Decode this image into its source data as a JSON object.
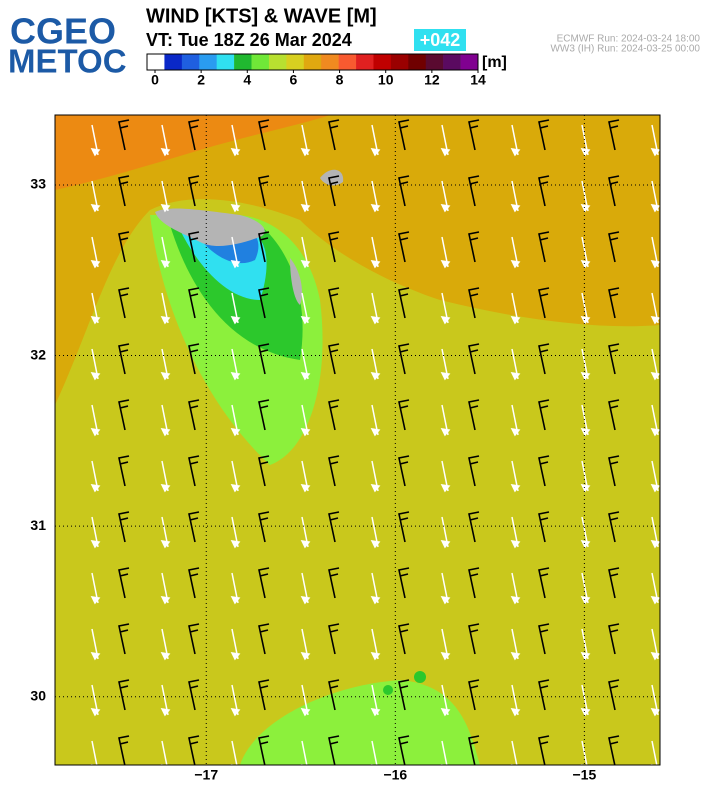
{
  "logo": {
    "line1": "CGEO",
    "line2": "METOC"
  },
  "header": {
    "title": "WIND [KTS] & WAVE [M]",
    "valid_time": "VT:  Tue 18Z 26 Mar 2024",
    "lead": "+042",
    "run1": "ECMWF    Run: 2024-03-24 18:00",
    "run2": "WW3 (IH) Run: 2024-03-25 00:00"
  },
  "colorbar": {
    "unit": "[m]",
    "lim": [
      0,
      14
    ],
    "ticks": [
      0,
      2,
      4,
      6,
      8,
      10,
      12,
      14
    ],
    "colors": [
      "#ffffff",
      "#0a28c8",
      "#1f5fe0",
      "#2a9cf0",
      "#30e0f0",
      "#20b830",
      "#70e838",
      "#b8e030",
      "#d8d020",
      "#e0a810",
      "#f08a20",
      "#f85a30",
      "#e02020",
      "#c00000",
      "#9a0000",
      "#700000",
      "#5a0a30",
      "#5a0a60",
      "#800090"
    ]
  },
  "map": {
    "xlim": [
      -17.8,
      -14.6
    ],
    "ylim": [
      29.6,
      33.41
    ],
    "xticks": [
      {
        "value": -17,
        "label": "−17"
      },
      {
        "value": -16,
        "label": "−16"
      },
      {
        "value": -15,
        "label": "−15"
      }
    ],
    "yticks": [
      30,
      31,
      32,
      33
    ]
  }
}
